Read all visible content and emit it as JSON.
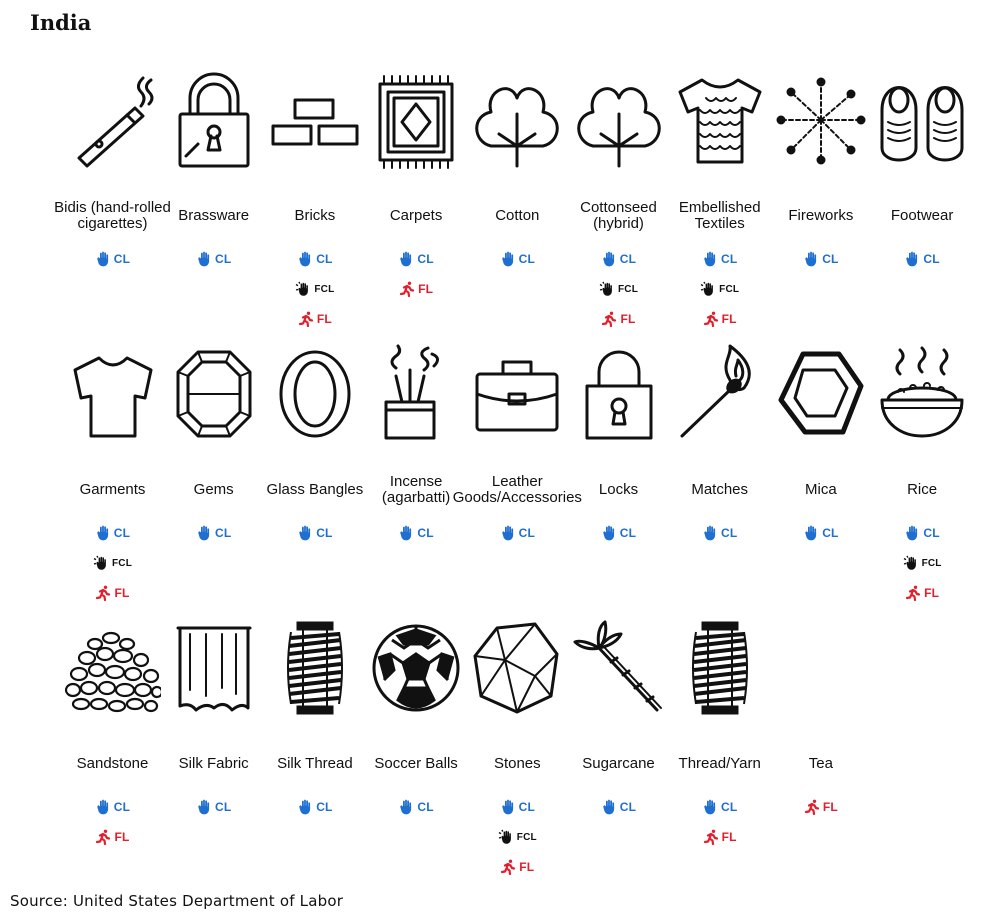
{
  "title": "India",
  "source": "Source: United States Department of Labor",
  "colors": {
    "cl": "#1f6fd1",
    "fcl": "#111111",
    "fl": "#e0202c"
  },
  "badge_labels": {
    "cl": "CL",
    "fcl": "FCL",
    "fl": "FL"
  },
  "rows": [
    [
      {
        "id": "bidis",
        "label": "Bidis (hand-rolled cigarettes)",
        "icon": "cigarette-icon",
        "badges": [
          "cl"
        ]
      },
      {
        "id": "brassware",
        "label": "Brassware",
        "icon": "padlock-icon",
        "badges": [
          "cl"
        ]
      },
      {
        "id": "bricks",
        "label": "Bricks",
        "icon": "bricks-icon",
        "badges": [
          "cl",
          "fcl",
          "fl"
        ]
      },
      {
        "id": "carpets",
        "label": "Carpets",
        "icon": "carpet-icon",
        "badges": [
          "cl",
          "fl"
        ]
      },
      {
        "id": "cotton",
        "label": "Cotton",
        "icon": "cotton-icon",
        "badges": [
          "cl"
        ]
      },
      {
        "id": "cottonseed",
        "label": "Cottonseed (hybrid)",
        "icon": "cotton-icon",
        "badges": [
          "cl",
          "fcl",
          "fl"
        ]
      },
      {
        "id": "embellished-textiles",
        "label": "Embellished Textiles",
        "icon": "sequin-shirt-icon",
        "badges": [
          "cl",
          "fcl",
          "fl"
        ]
      },
      {
        "id": "fireworks",
        "label": "Fireworks",
        "icon": "fireworks-icon",
        "badges": [
          "cl"
        ]
      },
      {
        "id": "footwear",
        "label": "Footwear",
        "icon": "shoes-icon",
        "badges": [
          "cl"
        ]
      }
    ],
    [
      {
        "id": "garments",
        "label": "Garments",
        "icon": "tshirt-icon",
        "badges": [
          "cl",
          "fcl",
          "fl"
        ]
      },
      {
        "id": "gems",
        "label": "Gems",
        "icon": "gem-icon",
        "badges": [
          "cl"
        ]
      },
      {
        "id": "glass-bangles",
        "label": "Glass Bangles",
        "icon": "bangle-icon",
        "badges": [
          "cl"
        ]
      },
      {
        "id": "incense",
        "label": "Incense (agarbatti)",
        "icon": "incense-icon",
        "badges": [
          "cl"
        ]
      },
      {
        "id": "leather-goods",
        "label": "Leather Goods/Accessories",
        "icon": "briefcase-icon",
        "badges": [
          "cl"
        ]
      },
      {
        "id": "locks",
        "label": "Locks",
        "icon": "lock-icon",
        "badges": [
          "cl"
        ]
      },
      {
        "id": "matches",
        "label": "Matches",
        "icon": "match-icon",
        "badges": [
          "cl"
        ]
      },
      {
        "id": "mica",
        "label": "Mica",
        "icon": "mica-icon",
        "badges": [
          "cl"
        ]
      },
      {
        "id": "rice",
        "label": "Rice",
        "icon": "rice-bowl-icon",
        "badges": [
          "cl",
          "fcl",
          "fl"
        ]
      }
    ],
    [
      {
        "id": "sandstone",
        "label": "Sandstone",
        "icon": "stones-pile-icon",
        "badges": [
          "cl",
          "fl"
        ]
      },
      {
        "id": "silk-fabric",
        "label": "Silk Fabric",
        "icon": "curtain-icon",
        "badges": [
          "cl"
        ]
      },
      {
        "id": "silk-thread",
        "label": "Silk Thread",
        "icon": "spool-icon",
        "badges": [
          "cl"
        ]
      },
      {
        "id": "soccer-balls",
        "label": "Soccer Balls",
        "icon": "soccer-ball-icon",
        "badges": [
          "cl"
        ]
      },
      {
        "id": "stones",
        "label": "Stones",
        "icon": "stone-icon",
        "badges": [
          "cl",
          "fcl",
          "fl"
        ]
      },
      {
        "id": "sugarcane",
        "label": "Sugarcane",
        "icon": "sugarcane-icon",
        "badges": [
          "cl"
        ]
      },
      {
        "id": "thread-yarn",
        "label": "Thread/Yarn",
        "icon": "spool-icon",
        "badges": [
          "cl",
          "fl"
        ]
      },
      {
        "id": "tea",
        "label": "Tea",
        "icon": "",
        "badges": [
          "fl"
        ]
      }
    ]
  ]
}
